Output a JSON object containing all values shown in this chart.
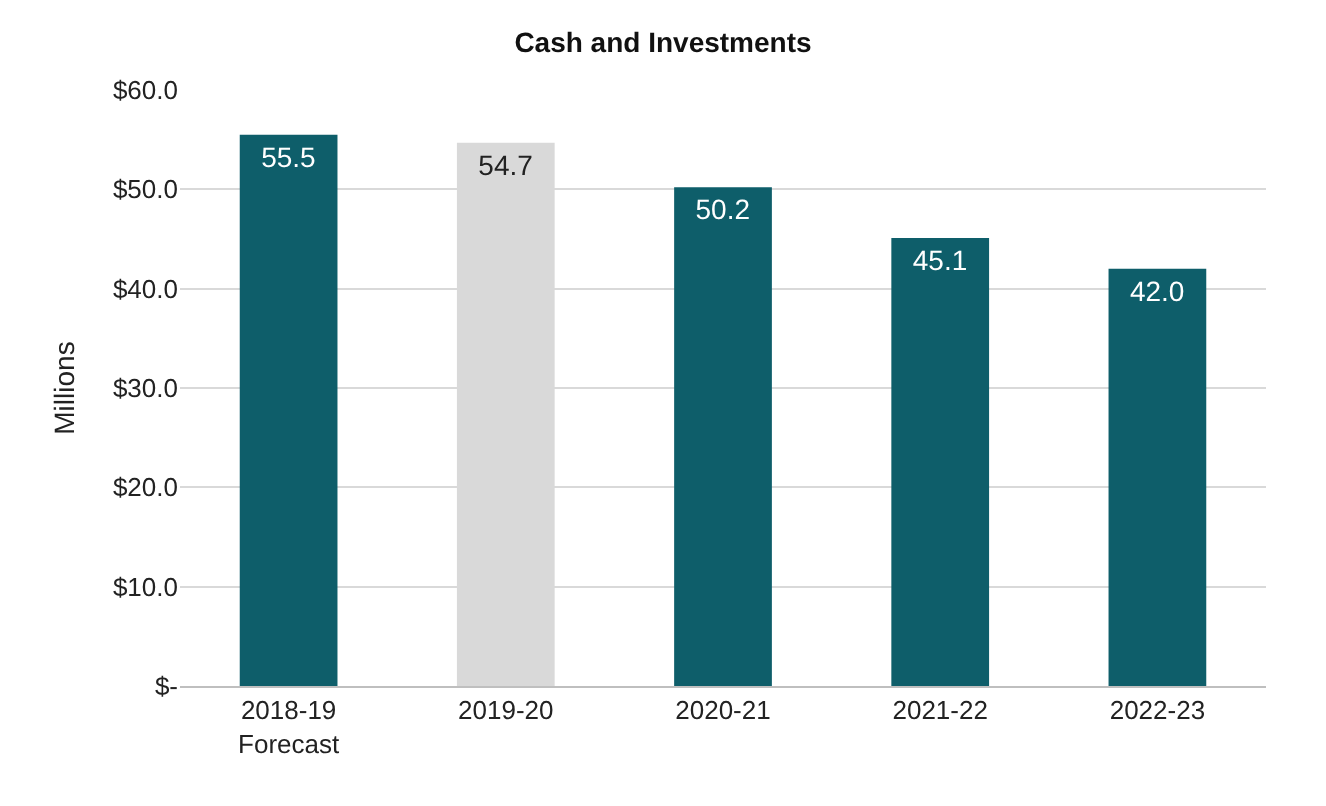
{
  "chart_data": {
    "type": "bar",
    "title": "Cash and Investments",
    "ylabel": "Millions",
    "categories": [
      "2018-19\nForecast",
      "2019-20",
      "2020-21",
      "2021-22",
      "2022-23"
    ],
    "values": [
      55.5,
      54.7,
      50.2,
      45.1,
      42.0
    ],
    "value_labels": [
      "55.5",
      "54.7",
      "50.2",
      "45.1",
      "42.0"
    ],
    "colors": [
      "#0e5e6a",
      "#d9d9d9",
      "#0e5e6a",
      "#0e5e6a",
      "#0e5e6a"
    ],
    "ylim": [
      0,
      60
    ],
    "yticks": [
      {
        "value": 0,
        "label": "$-"
      },
      {
        "value": 10,
        "label": "$10.0"
      },
      {
        "value": 20,
        "label": "$20.0"
      },
      {
        "value": 30,
        "label": "$30.0"
      },
      {
        "value": 40,
        "label": "$40.0"
      },
      {
        "value": 50,
        "label": "$50.0"
      },
      {
        "value": 60,
        "label": "$60.0"
      }
    ],
    "grid": "y"
  }
}
